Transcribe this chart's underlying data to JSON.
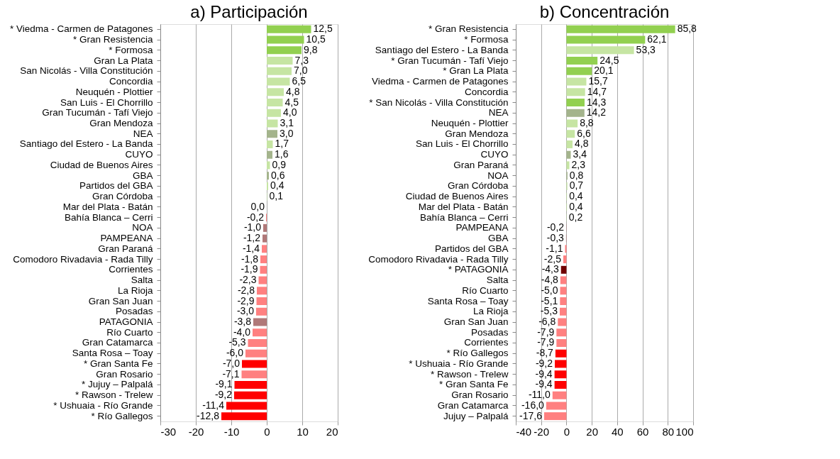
{
  "chart_data": [
    {
      "type": "bar",
      "orientation": "horizontal",
      "title": "a) Participación",
      "grid": "x",
      "categories": [
        "* Viedma - Carmen de Patagones",
        "* Gran Resistencia",
        "* Formosa",
        "Gran La Plata",
        "San Nicolás - Villa Constitución",
        "Concordia",
        "Neuquén - Plottier",
        "San Luis - El Chorrillo",
        "Gran Tucumán - Tafí Viejo",
        "Gran Mendoza",
        "NEA",
        "Santiago del Estero - La Banda",
        "CUYO",
        "Ciudad de Buenos Aires",
        "GBA",
        "Partidos del GBA",
        "Gran Córdoba",
        "Mar del Plata - Batán",
        "Bahía Blanca – Cerri",
        "NOA",
        "PAMPEANA",
        "Gran Paraná",
        "Comodoro Rivadavia - Rada Tilly",
        "Corrientes",
        "Salta",
        "La Rioja",
        "Gran San Juan",
        "Posadas",
        "PATAGONIA",
        "Río Cuarto",
        "Gran Catamarca",
        "Santa Rosa – Toay",
        "* Gran Santa Fe",
        "Gran Rosario",
        "* Jujuy – Palpalá",
        "* Rawson - Trelew",
        "* Ushuaia - Río Grande",
        "* Río Gallegos"
      ],
      "values": [
        12.5,
        10.5,
        9.8,
        7.3,
        7.0,
        6.5,
        4.8,
        4.5,
        4.0,
        3.1,
        3.0,
        1.7,
        1.6,
        0.9,
        0.6,
        0.4,
        0.1,
        0.0,
        -0.2,
        -1.0,
        -1.2,
        -1.4,
        -1.8,
        -1.9,
        -2.3,
        -2.8,
        -2.9,
        -3.0,
        -3.8,
        -4.0,
        -5.3,
        -6.0,
        -7.0,
        -7.1,
        -9.1,
        -9.2,
        -11.4,
        -12.8
      ],
      "value_labels": [
        "12,5",
        "10,5",
        "9,8",
        "7,3",
        "7,0",
        "6,5",
        "4,8",
        "4,5",
        "4,0",
        "3,1",
        "3,0",
        "1,7",
        "1,6",
        "0,9",
        "0,6",
        "0,4",
        "0,1",
        "0,0",
        "-0,2",
        "-1,0",
        "-1,2",
        "-1,4",
        "-1,8",
        "-1,9",
        "-2,3",
        "-2,8",
        "-2,9",
        "-3,0",
        "-3,8",
        "-4,0",
        "-5,3",
        "-6,0",
        "-7,0",
        "-7,1",
        "-9,1",
        "-9,2",
        "-11,4",
        "-12,8"
      ],
      "colors": [
        "#92d050",
        "#92d050",
        "#92d050",
        "#c6e5a3",
        "#c6e5a3",
        "#c6e5a3",
        "#c6e5a3",
        "#c6e5a3",
        "#c6e5a3",
        "#c6e5a3",
        "#a4b48c",
        "#c6e5a3",
        "#a4b48c",
        "#c6e5a3",
        "#a4b48c",
        "#c6e5a3",
        "#c6e5a3",
        "#ff8080",
        "#ff8080",
        "#b07878",
        "#b07878",
        "#ff8080",
        "#ff8080",
        "#ff8080",
        "#ff8080",
        "#ff8080",
        "#ff8080",
        "#ff8080",
        "#b07878",
        "#ff8080",
        "#ff8080",
        "#ff8080",
        "#ff0000",
        "#ff8080",
        "#ff0000",
        "#ff0000",
        "#ff0000",
        "#ff0000"
      ],
      "xlim": [
        -30,
        20
      ],
      "xticks": [
        -30,
        -20,
        -10,
        0,
        10,
        20
      ]
    },
    {
      "type": "bar",
      "orientation": "horizontal",
      "title": "b) Concentración",
      "grid": "x",
      "categories": [
        "* Gran Resistencia",
        "* Formosa",
        "Santiago del Estero - La Banda",
        "* Gran Tucumán - Tafí Viejo",
        "* Gran La Plata",
        "Viedma - Carmen de Patagones",
        "Concordia",
        "* San Nicolás - Villa Constitución",
        "NEA",
        "Neuquén - Plottier",
        "Gran Mendoza",
        "San Luis - El Chorrillo",
        "CUYO",
        "Gran Paraná",
        "NOA",
        "Gran Córdoba",
        "Ciudad de Buenos Aires",
        "Mar del Plata - Batán",
        "Bahía Blanca – Cerri",
        "PAMPEANA",
        "GBA",
        "Partidos del GBA",
        "Comodoro Rivadavia - Rada Tilly",
        "* PATAGONIA",
        "Salta",
        "Río Cuarto",
        "Santa Rosa – Toay",
        "La Rioja",
        "Gran San Juan",
        "Posadas",
        "Corrientes",
        "* Río Gallegos",
        "* Ushuaia - Río Grande",
        "* Rawson - Trelew",
        "* Gran Santa Fe",
        "Gran Rosario",
        "Gran Catamarca",
        "Jujuy – Palpalá"
      ],
      "values": [
        85.8,
        62.1,
        53.3,
        24.5,
        20.1,
        15.7,
        14.7,
        14.3,
        14.2,
        8.8,
        6.6,
        4.8,
        3.4,
        2.3,
        0.8,
        0.7,
        0.4,
        0.4,
        0.2,
        -0.2,
        -0.3,
        -1.1,
        -2.5,
        -4.3,
        -4.8,
        -5.0,
        -5.1,
        -5.3,
        -6.8,
        -7.9,
        -7.9,
        -8.7,
        -9.2,
        -9.4,
        -9.4,
        -11.0,
        -16.0,
        -17.6
      ],
      "value_labels": [
        "85,8",
        "62,1",
        "53,3",
        "24,5",
        "20,1",
        "15,7",
        "14,7",
        "14,3",
        "14,2",
        "8,8",
        "6,6",
        "4,8",
        "3,4",
        "2,3",
        "0,8",
        "0,7",
        "0,4",
        "0,4",
        "0,2",
        "-0,2",
        "-0,3",
        "-1,1",
        "-2,5",
        "-4,3",
        "-4,8",
        "-5,0",
        "-5,1",
        "-5,3",
        "-6,8",
        "-7,9",
        "-7,9",
        "-8,7",
        "-9,2",
        "-9,4",
        "-9,4",
        "-11,0",
        "-16,0",
        "-17,6"
      ],
      "colors": [
        "#92d050",
        "#92d050",
        "#c6e5a3",
        "#92d050",
        "#92d050",
        "#c6e5a3",
        "#c6e5a3",
        "#92d050",
        "#a4b48c",
        "#c6e5a3",
        "#c6e5a3",
        "#c6e5a3",
        "#a4b48c",
        "#c6e5a3",
        "#a4b48c",
        "#c6e5a3",
        "#c6e5a3",
        "#c6e5a3",
        "#c6e5a3",
        "#b07878",
        "#b07878",
        "#ff8080",
        "#ff8080",
        "#700000",
        "#ff8080",
        "#ff8080",
        "#ff8080",
        "#ff8080",
        "#ff8080",
        "#ff8080",
        "#ff8080",
        "#ff0000",
        "#ff0000",
        "#ff0000",
        "#ff0000",
        "#ff8080",
        "#ff8080",
        "#ff8080"
      ],
      "xlim": [
        -40,
        100
      ],
      "xticks": [
        -40,
        -20,
        0,
        20,
        40,
        60,
        80,
        100
      ]
    }
  ]
}
